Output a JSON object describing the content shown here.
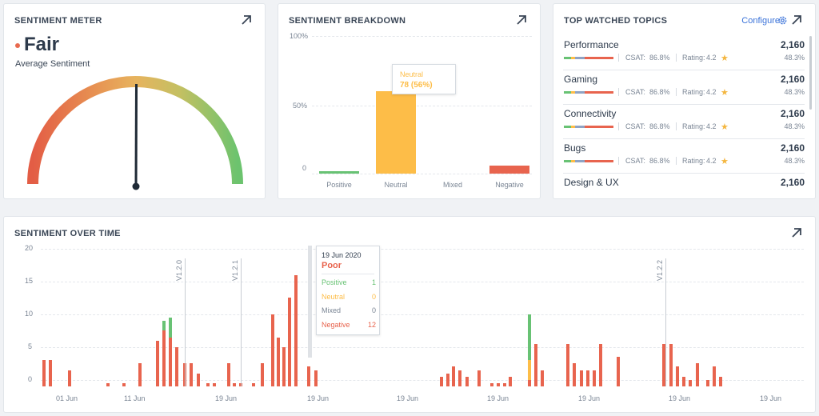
{
  "colors": {
    "positive": "#68c274",
    "neutral": "#fdbd48",
    "mixed": "#9aa3ad",
    "negative": "#e8644e",
    "accent": "#3b73d9",
    "star": "#f4b63f"
  },
  "meter": {
    "title": "SENTIMENT METER",
    "value": "Fair",
    "subtitle": "Average Sentiment",
    "expand_icon": "arrow-up-right-icon"
  },
  "breakdown": {
    "title": "SENTIMENT BREAKDOWN",
    "expand_icon": "arrow-up-right-icon",
    "y_ticks": [
      "100%",
      "50%",
      "0"
    ],
    "tooltip": {
      "label": "Neutral",
      "value": "78 (56%)"
    }
  },
  "topics": {
    "title": "TOP WATCHED TOPICS",
    "configure_label": "Configure",
    "configure_icon": "gear-icon",
    "expand_icon": "arrow-up-right-icon",
    "csat_label": "CSAT:",
    "rating_label": "Rating:",
    "items": [
      {
        "name": "Performance",
        "count": "2,160",
        "csat": "86.8%",
        "rating": "4.2",
        "share": "48.3%"
      },
      {
        "name": "Gaming",
        "count": "2,160",
        "csat": "86.8%",
        "rating": "4.2",
        "share": "48.3%"
      },
      {
        "name": "Connectivity",
        "count": "2,160",
        "csat": "86.8%",
        "rating": "4.2",
        "share": "48.3%"
      },
      {
        "name": "Bugs",
        "count": "2,160",
        "csat": "86.8%",
        "rating": "4.2",
        "share": "48.3%"
      },
      {
        "name": "Design & UX",
        "count": "2,160"
      }
    ]
  },
  "timeline": {
    "title": "SENTIMENT OVER TIME",
    "expand_icon": "arrow-up-right-icon",
    "tooltip": {
      "date": "19 Jun 2020",
      "status": "Poor",
      "rows": [
        {
          "label": "Positive",
          "value": "1"
        },
        {
          "label": "Neutral",
          "value": "0"
        },
        {
          "label": "Mixed",
          "value": "0"
        },
        {
          "label": "Negative",
          "value": "12"
        }
      ]
    },
    "releases": [
      "V1.2.0",
      "V1.2.1",
      "V1.2.2"
    ]
  },
  "chart_data": [
    {
      "type": "bar",
      "title": "SENTIMENT BREAKDOWN",
      "categories": [
        "Positive",
        "Neutral",
        "Mixed",
        "Negative"
      ],
      "values": [
        2,
        60,
        0,
        6
      ],
      "y_ticks": [
        "0",
        "50%",
        "100%"
      ],
      "ylim": [
        0,
        100
      ],
      "grid": true
    },
    {
      "type": "bar",
      "title": "SENTIMENT OVER TIME",
      "y_ticks": [
        0,
        5,
        10,
        15,
        20
      ],
      "ylim": [
        -1,
        20
      ],
      "x_tick_labels": [
        "01 Jun",
        "11 Jun",
        "19 Jun",
        "19 Jun",
        "19 Jun",
        "19 Jun",
        "19 Jun",
        "19 Jun",
        "19 Jun"
      ],
      "stacked": true,
      "grid": true,
      "series": [
        {
          "name": "Negative",
          "values": [
            4,
            4,
            2.5,
            0.5,
            0.5,
            3.5,
            7,
            8.5,
            7.5,
            6,
            3.5,
            3.5,
            2,
            0.5,
            0.5,
            3.5,
            0.5,
            0.5,
            0.5,
            3.5,
            11,
            7.5,
            6,
            13.5,
            17,
            3,
            2.5,
            1.5,
            2,
            3,
            2.5,
            1.5,
            2.5,
            0.5,
            0.5,
            0.5,
            1.5,
            1,
            6.5,
            2.5,
            6.5,
            3.5,
            2.5,
            2.5,
            2.5,
            6.5,
            4.5,
            6.5,
            6.5,
            3,
            1.5,
            1,
            3.5,
            1,
            3,
            1.5
          ]
        },
        {
          "name": "Neutral",
          "values": [
            0,
            0,
            0,
            0,
            0,
            0,
            0,
            0,
            0,
            0,
            0,
            0,
            0,
            0,
            0,
            0,
            0,
            0,
            0,
            0,
            0,
            0,
            0,
            0,
            0,
            0,
            0,
            0,
            0,
            0,
            0,
            0,
            0,
            0,
            0,
            0,
            0,
            3,
            0,
            0,
            0,
            0,
            0,
            0,
            0,
            0,
            0,
            0,
            0,
            0,
            0,
            0,
            0,
            0,
            0,
            0
          ]
        },
        {
          "name": "Positive",
          "values": [
            0,
            0,
            0,
            0,
            0,
            0,
            0,
            1.5,
            3,
            0,
            0,
            0,
            0,
            0,
            0,
            0,
            0,
            0,
            0,
            0,
            0,
            0,
            0,
            0,
            0,
            0,
            0,
            0,
            0,
            0,
            0,
            0,
            0,
            0,
            0,
            0,
            0,
            7,
            0,
            0,
            0,
            0,
            0,
            0,
            0,
            0,
            0,
            0,
            0,
            0,
            0,
            0,
            0,
            0,
            0,
            0
          ]
        }
      ]
    }
  ]
}
